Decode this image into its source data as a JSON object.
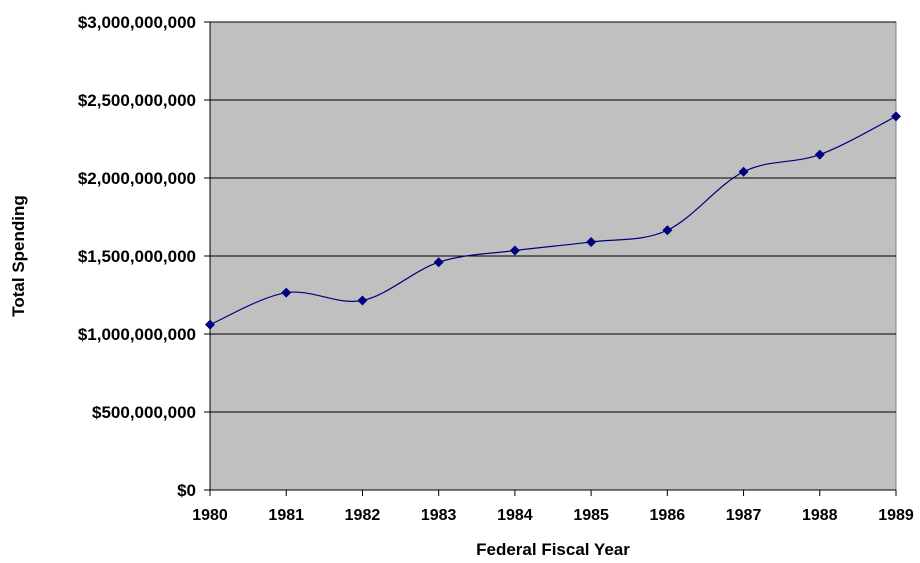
{
  "chart_data": {
    "type": "line",
    "title": "",
    "xlabel": "Federal Fiscal Year",
    "ylabel": "Total Spending",
    "categories": [
      "1980",
      "1981",
      "1982",
      "1983",
      "1984",
      "1985",
      "1986",
      "1987",
      "1988",
      "1989"
    ],
    "series": [
      {
        "values": [
          1060000000,
          1265000000,
          1215000000,
          1460000000,
          1535000000,
          1590000000,
          1665000000,
          2040000000,
          2150000000,
          2395000000
        ]
      }
    ],
    "ylim": [
      0,
      3000000000
    ],
    "ytick_values": [
      0,
      500000000,
      1000000000,
      1500000000,
      2000000000,
      2500000000,
      3000000000
    ],
    "ytick_labels": [
      "$0",
      "$500,000,000",
      "$1,000,000,000",
      "$1,500,000,000",
      "$2,000,000,000",
      "$2,500,000,000",
      "$3,000,000,000"
    ],
    "grid": true,
    "legend": "none",
    "colors": {
      "plot_background": "#c0c0c0",
      "line": "#000080",
      "marker": "#000080",
      "gridline": "#000000"
    }
  }
}
